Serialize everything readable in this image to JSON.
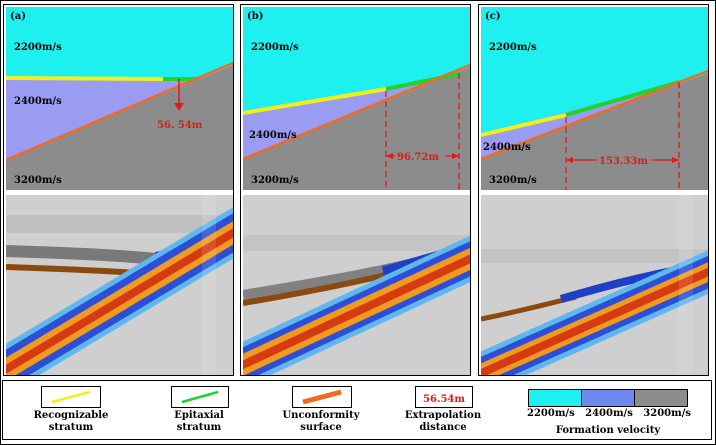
{
  "panels": [
    {
      "label": "(a)",
      "distance": "56. 54m"
    },
    {
      "label": "(b)",
      "distance": "96.72m"
    },
    {
      "label": "(c)",
      "distance": "153.33m"
    }
  ],
  "velocities": {
    "top": "2200m/s",
    "mid": "2400m/s",
    "bottom": "3200m/s"
  },
  "legend": {
    "recognizable": {
      "line1": "Recognizable",
      "line2": "stratum",
      "color": "#f3ef1d"
    },
    "epitaxial": {
      "line1": "Epitaxial",
      "line2": "stratum",
      "color": "#22d22c"
    },
    "unconformity": {
      "line1": "Unconformity",
      "line2": "surface",
      "color": "#f06a22"
    },
    "extrapolation": {
      "sample": "56.54m",
      "line1": "Extrapolation",
      "line2": "distance"
    },
    "formation": {
      "title": "Formation velocity",
      "v1": "2200m/s",
      "v2": "2400m/s",
      "v3": "3200m/s"
    }
  },
  "colors": {
    "cyan": "#1ef0f0",
    "violet": "#9a9cf2",
    "gray": "#8c8c8c",
    "red": "#e0191f"
  }
}
